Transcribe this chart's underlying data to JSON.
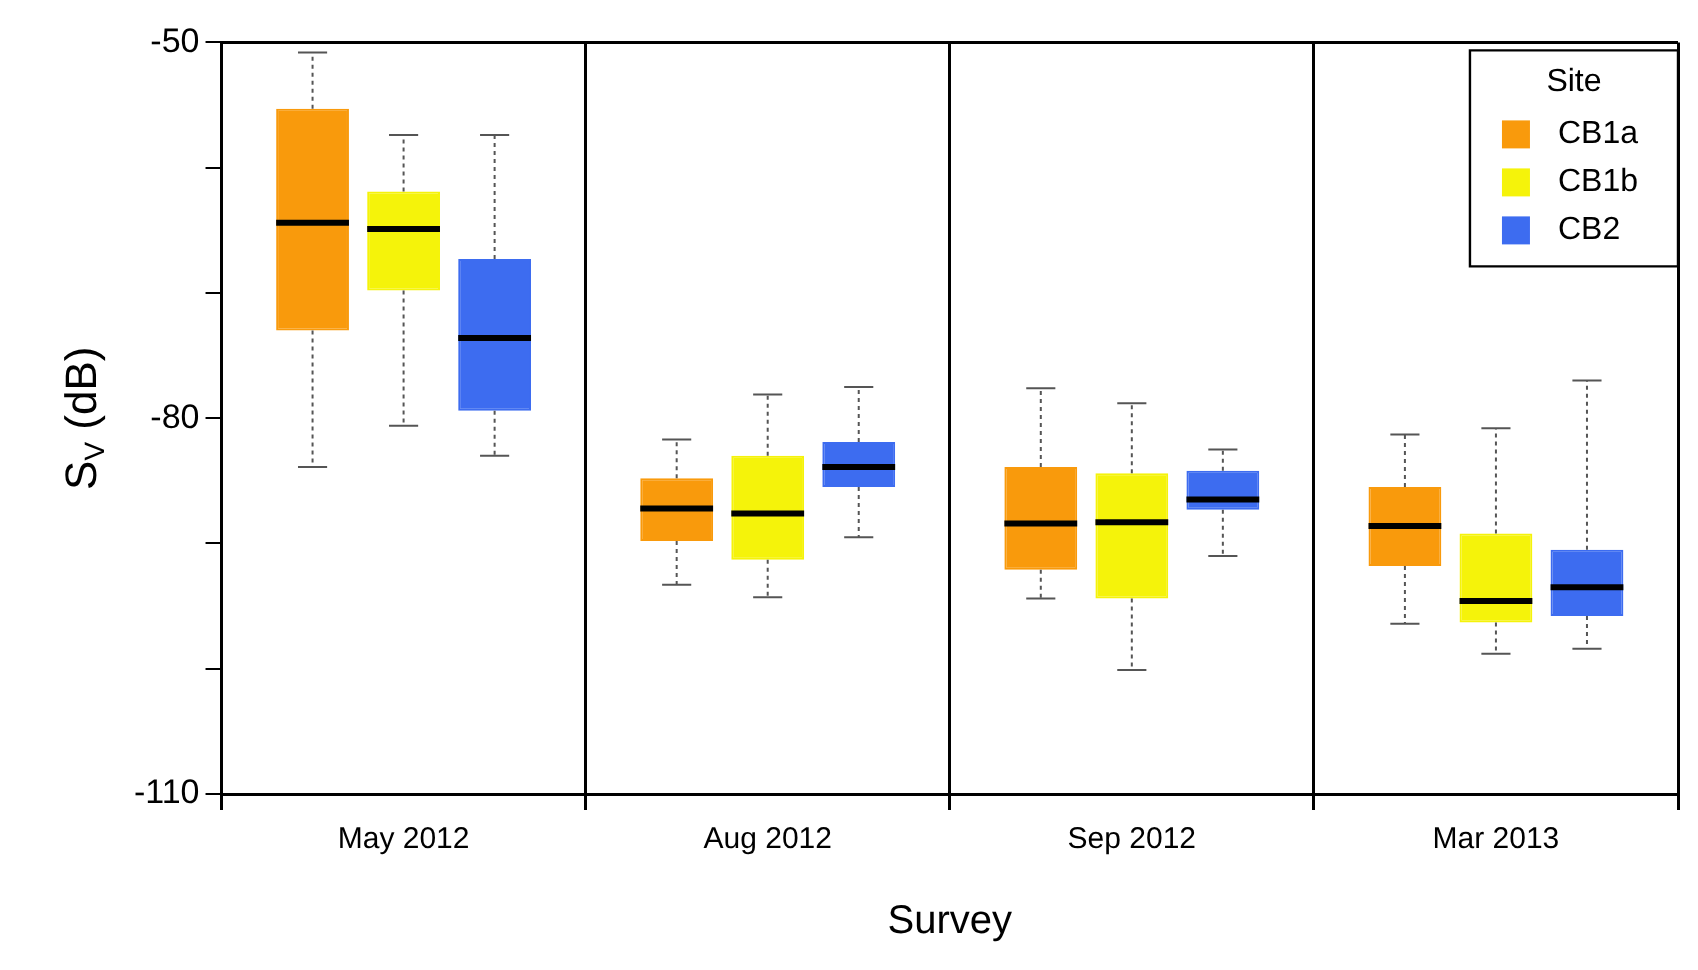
{
  "chart_data": {
    "type": "box",
    "xlabel": "Survey",
    "ylabel": "S$_{V}$ (dB)",
    "legend_title": "Site",
    "legend": "top right",
    "grid": "x",
    "categories": [
      "May 2012",
      "Aug 2012",
      "Sep 2012",
      "Mar 2013"
    ],
    "ylim": [
      -110,
      -50
    ],
    "yticks": [
      -110,
      {
        "value": -100,
        "label": null
      },
      {
        "value": -90,
        "label": null
      },
      -80,
      {
        "value": -70,
        "label": null
      },
      {
        "value": -60,
        "label": null
      },
      -50
    ],
    "series": [
      {
        "name": "CB1a",
        "color": "#f99a0c",
        "boxes": [
          {
            "low": -83.9,
            "q1": -73.0,
            "median": -64.4,
            "q3": -55.3,
            "high": -50.8
          },
          {
            "low": -93.3,
            "q1": -89.8,
            "median": -87.2,
            "q3": -84.8,
            "high": -81.7
          },
          {
            "low": -94.4,
            "q1": -92.1,
            "median": -88.4,
            "q3": -83.9,
            "high": -77.6
          },
          {
            "low": -96.4,
            "q1": -91.8,
            "median": -88.6,
            "q3": -85.5,
            "high": -81.3
          }
        ]
      },
      {
        "name": "CB1b",
        "color": "#f5f30a",
        "boxes": [
          {
            "low": -80.6,
            "q1": -69.8,
            "median": -64.9,
            "q3": -61.9,
            "high": -57.4
          },
          {
            "low": -94.3,
            "q1": -91.3,
            "median": -87.6,
            "q3": -83.0,
            "high": -78.1
          },
          {
            "low": -100.1,
            "q1": -94.4,
            "median": -88.3,
            "q3": -84.4,
            "high": -78.8
          },
          {
            "low": -98.8,
            "q1": -96.3,
            "median": -94.6,
            "q3": -89.2,
            "high": -80.8
          }
        ]
      },
      {
        "name": "CB2",
        "color": "#3d6cf0",
        "boxes": [
          {
            "low": -83.0,
            "q1": -79.4,
            "median": -73.6,
            "q3": -67.3,
            "high": -57.4
          },
          {
            "low": -89.5,
            "q1": -85.5,
            "median": -83.9,
            "q3": -81.9,
            "high": -77.5
          },
          {
            "low": -91.0,
            "q1": -87.3,
            "median": -86.5,
            "q3": -84.2,
            "high": -82.5
          },
          {
            "low": -98.4,
            "q1": -95.8,
            "median": -93.5,
            "q3": -90.5,
            "high": -77.0
          }
        ]
      }
    ]
  }
}
